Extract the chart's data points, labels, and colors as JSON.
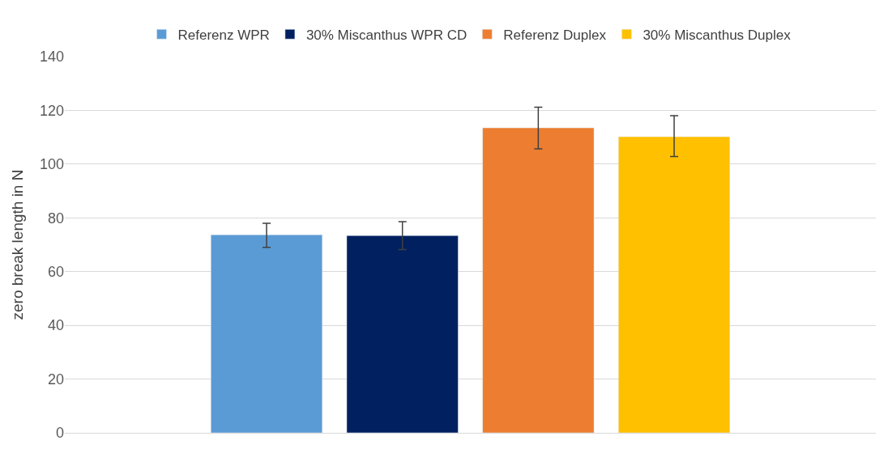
{
  "chart_data": {
    "type": "bar",
    "ylabel": "zero break length in N",
    "categories": [
      null
    ],
    "series": [
      {
        "name": "Referenz WPR",
        "color": "#5b9bd5",
        "values": [
          73.7
        ],
        "errors": [
          [
            69,
            78
          ]
        ]
      },
      {
        "name": "30% Miscanthus WPR CD",
        "color": "#002060",
        "values": [
          73.4
        ],
        "errors": [
          [
            68.2,
            78.6
          ]
        ]
      },
      {
        "name": "Referenz Duplex",
        "color": "#ed7d31",
        "values": [
          113.5
        ],
        "errors": [
          [
            105.7,
            121.2
          ]
        ]
      },
      {
        "name": "30% Miscanthus Duplex",
        "color": "#ffc000",
        "values": [
          110.2
        ],
        "errors": [
          [
            102.8,
            118
          ]
        ]
      }
    ],
    "ylim": [
      0,
      140
    ],
    "yticks": [
      0,
      20,
      40,
      60,
      80,
      100,
      120,
      140
    ],
    "grid": "y",
    "legend": "top",
    "tick_labels": "y"
  }
}
